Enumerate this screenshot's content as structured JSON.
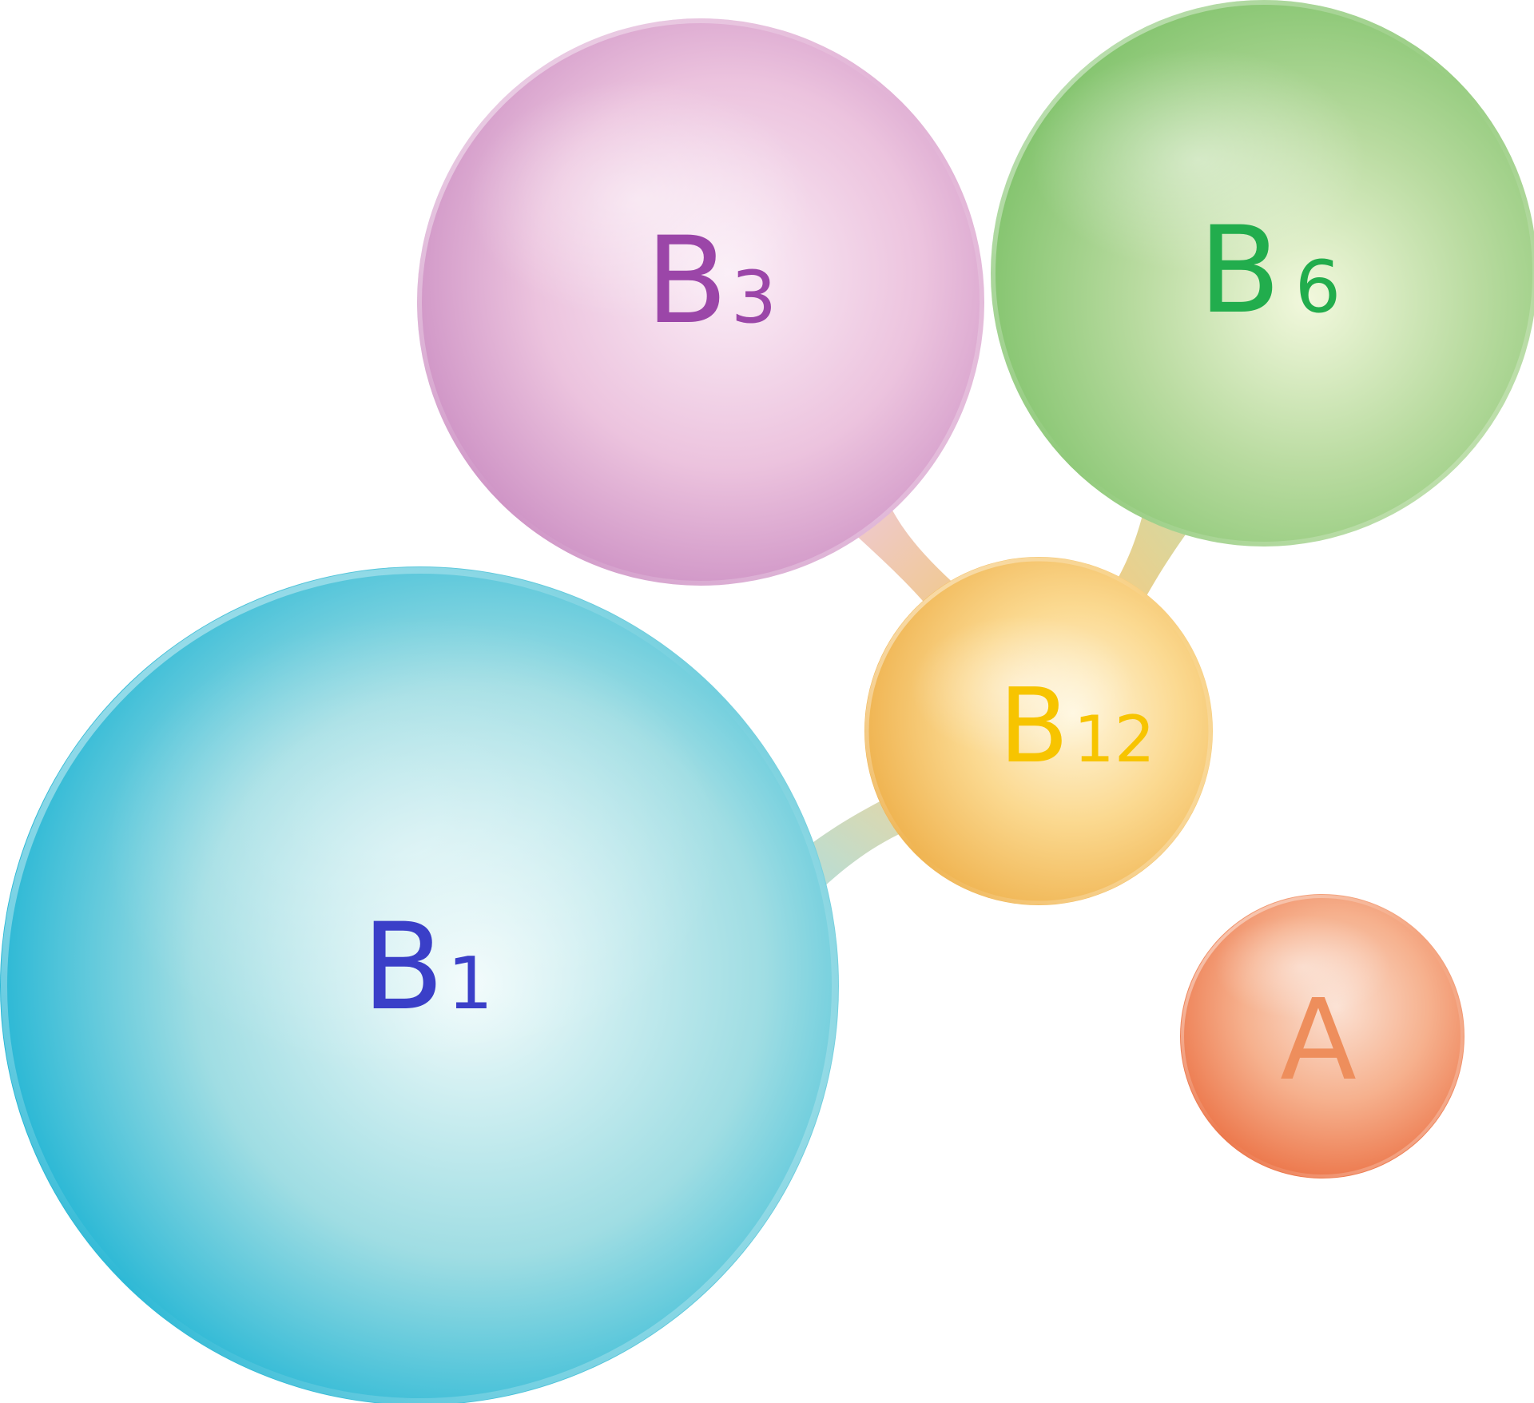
{
  "spheres": [
    {
      "id": "b1",
      "letter": "B",
      "subscript": "1",
      "text_color": "#3a3fc8",
      "colors": {
        "light": "#f1fbfb",
        "mid": "#9fdde3",
        "dark": "#18b2d3"
      }
    },
    {
      "id": "b3",
      "letter": "B",
      "subscript": "3",
      "text_color": "#9b46a8",
      "colors": {
        "light": "#fbeef7",
        "mid": "#ecc3de",
        "dark": "#c98bc1"
      }
    },
    {
      "id": "b6",
      "letter": "B",
      "subscript": "6",
      "text_color": "#22ad4d",
      "colors": {
        "light": "#f2f8dd",
        "mid": "#b9dba0",
        "dark": "#7fc26a"
      }
    },
    {
      "id": "b12",
      "letter": "B",
      "subscript": "12",
      "text_color": "#f7c400",
      "colors": {
        "light": "#fff6dc",
        "mid": "#fbd990",
        "dark": "#efb24e"
      }
    },
    {
      "id": "a",
      "letter": "A",
      "subscript": "",
      "text_color": "#ee8e5c",
      "colors": {
        "light": "#fbe1d3",
        "mid": "#f6b18e",
        "dark": "#eb7043"
      }
    }
  ],
  "connections": [
    {
      "from": "b1",
      "to": "b12"
    },
    {
      "from": "b3",
      "to": "b12"
    },
    {
      "from": "b6",
      "to": "b12"
    }
  ]
}
